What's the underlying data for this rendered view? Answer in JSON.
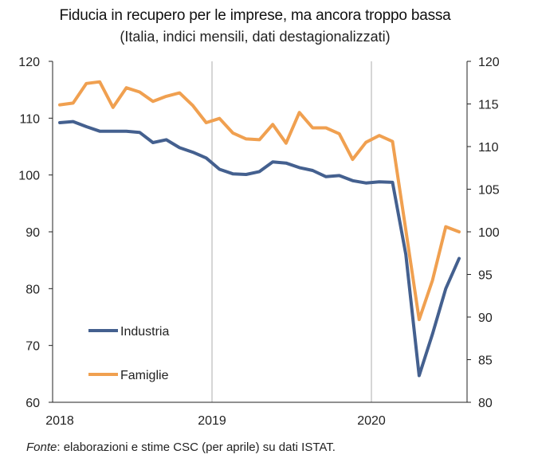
{
  "chart_data": {
    "type": "line",
    "title": "Fiducia in recupero per le imprese, ma ancora troppo bassa",
    "subtitle": "(Italia, indici mensili, dati destagionalizzati)",
    "source_prefix": "Fonte",
    "source_text": ": elaborazioni e stime CSC (per aprile) su dati ISTAT.",
    "x_tick_labels": [
      "2018",
      "2019",
      "2020"
    ],
    "y_left": {
      "range": [
        60,
        120
      ],
      "ticks": [
        60,
        70,
        80,
        90,
        100,
        110,
        120
      ]
    },
    "y_right": {
      "range": [
        80,
        120
      ],
      "ticks": [
        80,
        85,
        90,
        95,
        100,
        105,
        110,
        115,
        120
      ]
    },
    "gridlines_at": [
      "2019",
      "2020"
    ],
    "series": [
      {
        "name": "Industria",
        "axis": "left",
        "color": "#44608f",
        "values": [
          109.2,
          109.4,
          108.5,
          107.7,
          107.7,
          107.7,
          107.5,
          105.7,
          106.2,
          104.8,
          104.0,
          103.0,
          101.0,
          100.2,
          100.1,
          100.6,
          102.3,
          102.1,
          101.3,
          100.8,
          99.7,
          99.9,
          99.0,
          98.6,
          98.8,
          98.7,
          86.0,
          64.7,
          72.0,
          80.0,
          85.3
        ]
      },
      {
        "name": "Famiglie",
        "axis": "right",
        "color": "#f0a050",
        "values": [
          114.9,
          115.1,
          117.4,
          117.6,
          114.6,
          116.9,
          116.4,
          115.3,
          115.9,
          116.3,
          114.8,
          112.8,
          113.3,
          111.6,
          110.9,
          110.8,
          112.6,
          110.4,
          114.0,
          112.2,
          112.2,
          111.5,
          108.5,
          110.5,
          111.3,
          110.6,
          100.2,
          89.7,
          94.3,
          100.6,
          100.0
        ]
      }
    ]
  }
}
